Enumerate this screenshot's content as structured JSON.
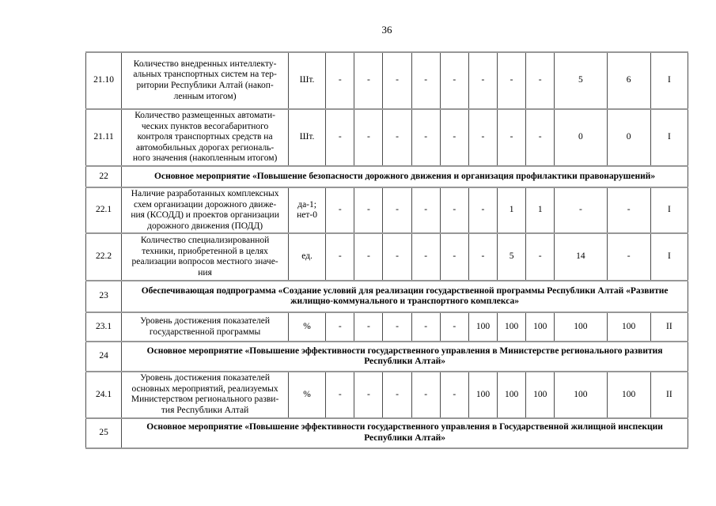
{
  "page": {
    "number": "36"
  },
  "table": {
    "rows": [
      {
        "type": "data",
        "num": "21.10",
        "name": "Количество внедренных интеллекту-\nальных транспортных систем на тер-\nритории Республики Алтай (накоп-\nленным итогом)",
        "unit": "Шт.",
        "values": [
          "-",
          "-",
          "-",
          "-",
          "-",
          "-",
          "-",
          "-",
          "5",
          "6"
        ],
        "status": "I"
      },
      {
        "type": "data",
        "num": "21.11",
        "name": "Количество размещенных автомати-\nческих пунктов весогабаритного\nконтроля транспортных средств на\nавтомобильных дорогах региональ-\nного значения (накопленным итогом)",
        "unit": "Шт.",
        "values": [
          "-",
          "-",
          "-",
          "-",
          "-",
          "-",
          "-",
          "-",
          "0",
          "0"
        ],
        "status": "I"
      },
      {
        "type": "section",
        "num": "22",
        "title": "Основное мероприятие «Повышение безопасности дорожного движения и организация профилактики правонарушений»"
      },
      {
        "type": "data",
        "num": "22.1",
        "name": "Наличие разработанных комплексных\nсхем организации дорожного движе-\nния (КСОДД) и проектов организации\nдорожного движения (ПОДД)",
        "unit": "да-1;\nнет-0",
        "values": [
          "-",
          "-",
          "-",
          "-",
          "-",
          "-",
          "1",
          "1",
          "-",
          "-"
        ],
        "status": "I"
      },
      {
        "type": "data",
        "num": "22.2",
        "name": "Количество специализированной\nтехники, приобретенной в целях\nреализации вопросов местного значе-\nния",
        "unit": "ед.",
        "values": [
          "-",
          "-",
          "-",
          "-",
          "-",
          "-",
          "5",
          "-",
          "14",
          "-"
        ],
        "status": "I"
      },
      {
        "type": "section",
        "num": "23",
        "title": "Обеспечивающая подпрограмма  «Создание условий для реализации государственной программы Республики Алтай «Развитие\nжилищно-коммунального и транспортного комплекса»"
      },
      {
        "type": "data",
        "num": "23.1",
        "name": "Уровень достижения показателей\nгосударственной программы",
        "unit": "%",
        "values": [
          "-",
          "-",
          "-",
          "-",
          "-",
          "100",
          "100",
          "100",
          "100",
          "100"
        ],
        "status": "II"
      },
      {
        "type": "section",
        "num": "24",
        "title": "Основное мероприятие «Повышение эффективности государственного управления в Министерстве регионального развития\nРеспублики Алтай»"
      },
      {
        "type": "data",
        "num": "24.1",
        "name": "Уровень достижения показателей\nосновных мероприятий, реализуемых\nМинистерством регионального разви-\nтия Республики Алтай",
        "unit": "%",
        "values": [
          "-",
          "-",
          "-",
          "-",
          "-",
          "100",
          "100",
          "100",
          "100",
          "100"
        ],
        "status": "II"
      },
      {
        "type": "section",
        "num": "25",
        "title": "Основное мероприятие «Повышение эффективности государственного управления в Государственной жилищной инспекции\nРеспублики Алтай»"
      }
    ]
  }
}
